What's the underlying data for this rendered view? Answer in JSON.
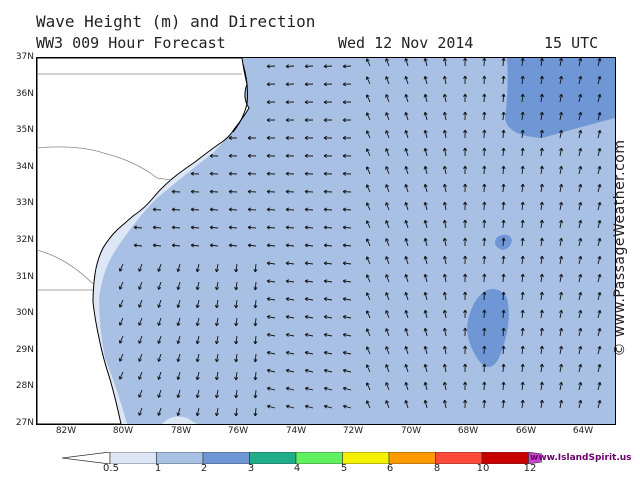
{
  "title": "Wave Height (m) and Direction",
  "subtitle": {
    "model": "WW3 009 Hour Forecast",
    "date": "Wed 12 Nov 2014",
    "time": "15 UTC"
  },
  "credit": "© www.PassageWeather.com",
  "watermark": "www.IslandSpirit.us",
  "axes": {
    "latitudes": [
      "37N",
      "36N",
      "35N",
      "34N",
      "33N",
      "32N",
      "31N",
      "30N",
      "29N",
      "28N",
      "27N"
    ],
    "longitudes": [
      "82W",
      "80W",
      "78W",
      "76W",
      "74W",
      "72W",
      "70W",
      "68W",
      "66W",
      "64W"
    ]
  },
  "legend": {
    "breaks": [
      "0.5",
      "1",
      "2",
      "3",
      "4",
      "5",
      "6",
      "8",
      "10",
      "12"
    ],
    "colors": [
      "#ffffff",
      "#dde6f5",
      "#a8c0e4",
      "#6f97d6",
      "#1fae8a",
      "#60f060",
      "#f5f000",
      "#ff9a00",
      "#ff4a3a",
      "#c80000",
      "#cc44cc"
    ]
  },
  "colors": {
    "land": "#ffffff",
    "coastline": "#000000",
    "borders": "#888888",
    "band_0_5_1": "#dde6f5",
    "band_1_2": "#a8c0e4",
    "band_2_3": "#6f97d6",
    "arrow": "#111111"
  }
}
